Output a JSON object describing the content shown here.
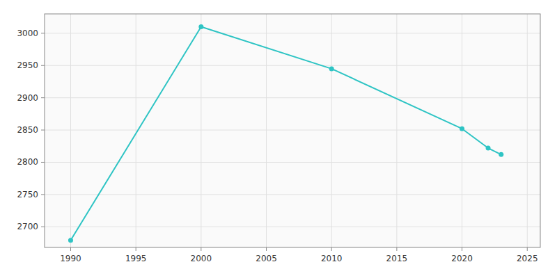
{
  "chart_data": {
    "type": "line",
    "x": [
      1990,
      2000,
      2010,
      2020,
      2022,
      2023
    ],
    "values": [
      2679,
      3010,
      2945,
      2852,
      2822,
      2812
    ],
    "color": "#2ec4c4",
    "marker": "circle",
    "xlim": [
      1988,
      2026
    ],
    "ylim": [
      2668,
      3030
    ],
    "xticks": [
      1990,
      1995,
      2000,
      2005,
      2010,
      2015,
      2020,
      2025
    ],
    "yticks": [
      2700,
      2750,
      2800,
      2850,
      2900,
      2950,
      3000
    ],
    "grid": true
  }
}
